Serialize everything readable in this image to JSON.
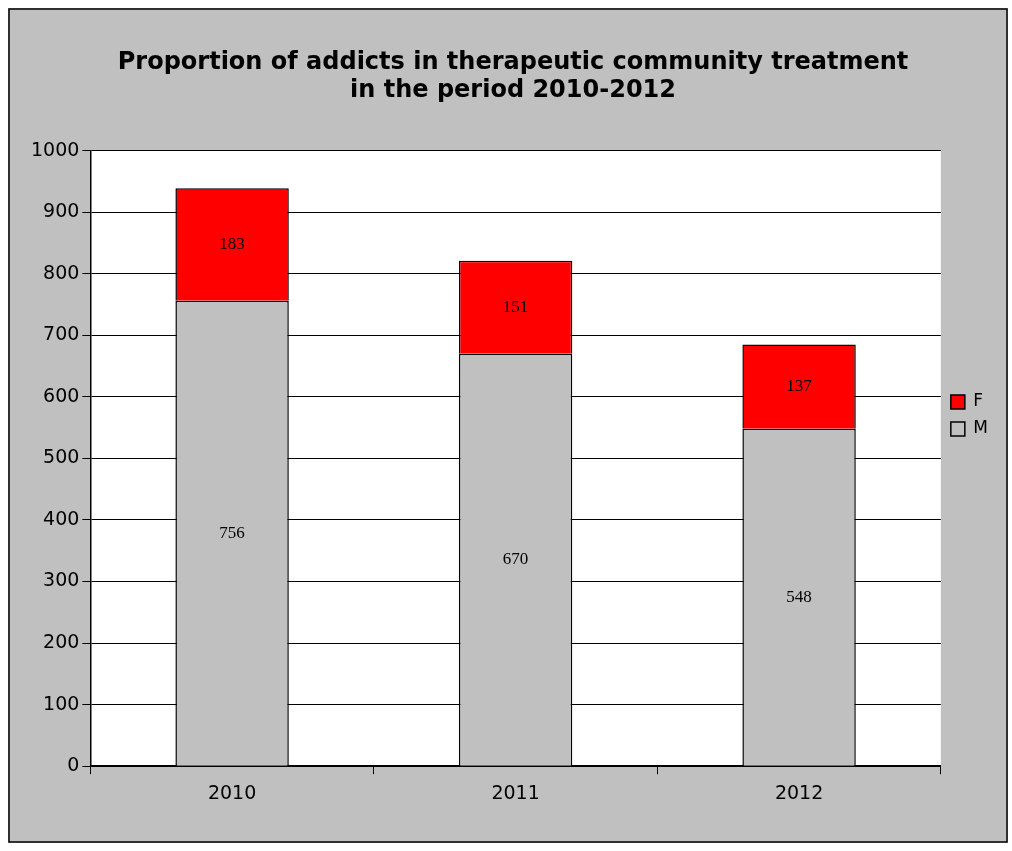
{
  "chart_data": {
    "type": "bar",
    "title": "Proportion of addicts in therapeutic community treatment\nin the period 2010-2012",
    "categories": [
      "2010",
      "2011",
      "2012"
    ],
    "stacked": true,
    "series": [
      {
        "name": "M",
        "color": "#c0c0c0",
        "values": [
          756,
          670,
          548
        ]
      },
      {
        "name": "F",
        "color": "#ff0000",
        "values": [
          183,
          151,
          137
        ]
      }
    ],
    "ylim": [
      0,
      1000
    ],
    "yticks": [
      0,
      100,
      200,
      300,
      400,
      500,
      600,
      700,
      800,
      900,
      1000
    ],
    "grid": "y",
    "legend": "right",
    "data_labels": true
  }
}
